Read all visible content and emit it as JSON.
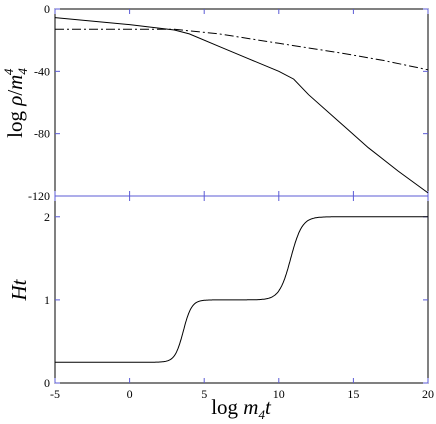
{
  "chart_data": [
    {
      "type": "line",
      "panel": "top",
      "ylabel_main": "log ρ/m",
      "ylabel_sub": "4",
      "ylabel_sup": "4",
      "xlim": [
        -5,
        20
      ],
      "ylim": [
        -120,
        0
      ],
      "xticks": [
        -5,
        0,
        5,
        10,
        15,
        20
      ],
      "yticks": [
        0,
        -40,
        -80,
        -120
      ],
      "ytick_labels": [
        "0",
        "-40",
        "-80",
        "-120"
      ],
      "series": [
        {
          "style": "solid",
          "x": [
            -5,
            0,
            3,
            4,
            6,
            8,
            10,
            11,
            12,
            14,
            16,
            18,
            20
          ],
          "y": [
            -5.5,
            -10,
            -13.5,
            -16,
            -24,
            -32,
            -40,
            -45,
            -55,
            -72,
            -89,
            -104,
            -118
          ]
        },
        {
          "style": "dashdot",
          "x": [
            -5,
            0,
            3,
            6,
            10,
            14,
            17,
            20
          ],
          "y": [
            -13,
            -13,
            -13,
            -16,
            -22,
            -28,
            -33,
            -39
          ]
        }
      ]
    },
    {
      "type": "line",
      "panel": "bottom",
      "xlabel_pre": "log ",
      "xlabel_main": "m",
      "xlabel_sub": "4",
      "xlabel_post": "t",
      "ylabel": "Ht",
      "xlim": [
        -5,
        20
      ],
      "ylim": [
        0,
        2.25
      ],
      "xticks": [
        -5,
        0,
        5,
        10,
        15,
        20
      ],
      "xtick_labels": [
        "-5",
        "0",
        "5",
        "10",
        "15",
        "20"
      ],
      "yticks": [
        0,
        1,
        2
      ],
      "ytick_labels": [
        "0",
        "1",
        "2"
      ],
      "series": [
        {
          "style": "solid",
          "curve": "two-step",
          "levels": [
            0.25,
            1.0,
            2.0
          ],
          "transitions": [
            3.6,
            10.8
          ],
          "widths": [
            0.28,
            0.38
          ]
        }
      ]
    }
  ]
}
